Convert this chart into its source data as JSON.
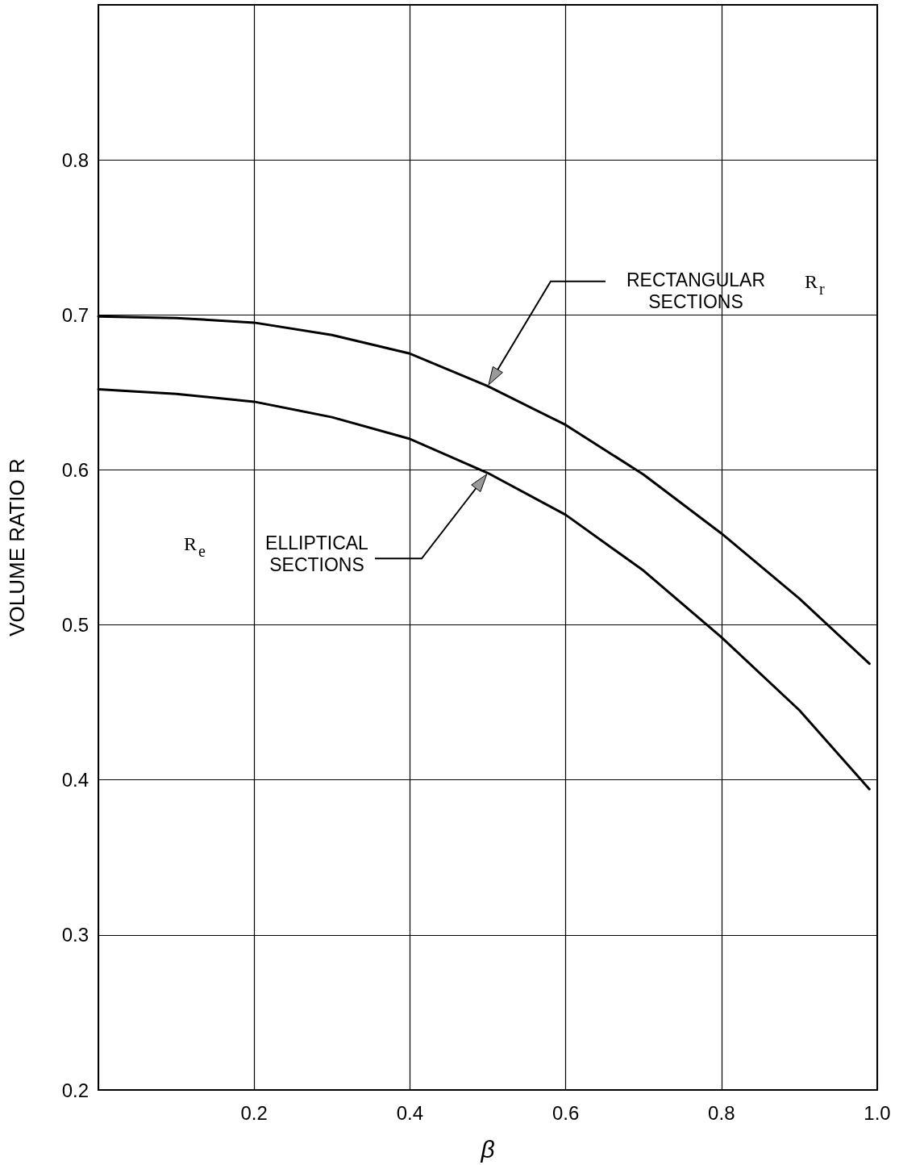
{
  "chart_data": {
    "type": "line",
    "xlabel": "β",
    "ylabel": "VOLUME RATIO R",
    "xlim": [
      0,
      1
    ],
    "xticks": [
      0.2,
      0.4,
      0.6,
      0.8,
      {
        "value": 1,
        "label": "1.0"
      }
    ],
    "ylim": [
      0.2,
      0.9
    ],
    "yticks": [
      0.2,
      0.3,
      0.4,
      0.5,
      0.6,
      0.7,
      0.8
    ],
    "grid": true,
    "marker": "none",
    "line_style": "solid",
    "x": [
      0,
      0.1,
      0.2,
      0.3,
      0.4,
      0.5,
      0.6,
      0.7,
      0.8,
      0.9,
      0.99
    ],
    "series": [
      {
        "color": "#000000",
        "values": [
          0.699,
          0.698,
          0.695,
          0.687,
          0.675,
          0.654,
          0.629,
          0.597,
          0.559,
          0.517,
          0.475
        ]
      },
      {
        "color": "#000000",
        "values": [
          0.652,
          0.649,
          0.644,
          0.634,
          0.62,
          0.598,
          0.571,
          0.535,
          0.492,
          0.445,
          0.394
        ]
      }
    ],
    "annotations": [
      "RECTANGULAR\nSECTIONS",
      "R$_{r}$",
      "ELLIPTICAL\nSECTIONS",
      "R$_{e}$"
    ]
  }
}
